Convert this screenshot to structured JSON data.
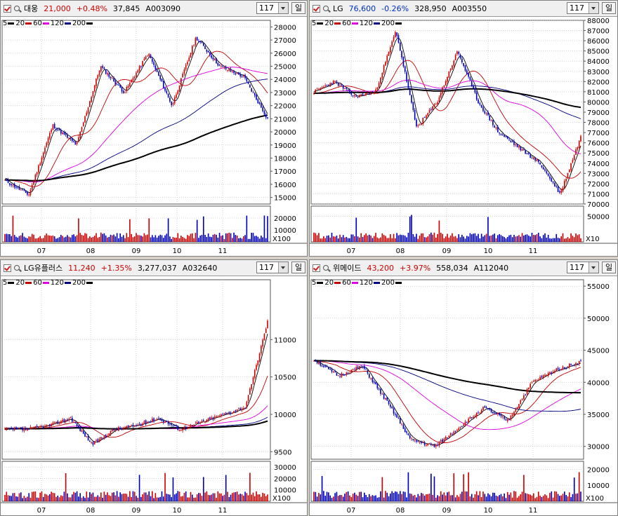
{
  "legend": [
    {
      "label": "5",
      "color": "#000000"
    },
    {
      "label": "20",
      "color": "#c00000"
    },
    {
      "label": "60",
      "color": "#e000e0"
    },
    {
      "label": "120",
      "color": "#000080"
    },
    {
      "label": "200",
      "color": "#000000"
    }
  ],
  "months": [
    "07",
    "08",
    "09",
    "10",
    "11"
  ],
  "period_label": "일",
  "panels": [
    {
      "name": "대웅",
      "price": "21,000",
      "change": "+0.48%",
      "volume": "37,845",
      "code": "A003090",
      "direction": "up",
      "period": "117",
      "vol_unit": "X100",
      "price_ticks": [
        "28000",
        "27000",
        "26000",
        "25000",
        "24000",
        "23000",
        "22000",
        "21000",
        "20000",
        "19000",
        "18000",
        "17000",
        "16000",
        "15000"
      ],
      "volume_ticks": [
        "20000",
        "10000"
      ]
    },
    {
      "name": "LG",
      "price": "76,600",
      "change": "-0.26%",
      "volume": "328,950",
      "code": "A003550",
      "direction": "down",
      "period": "117",
      "vol_unit": "X10",
      "price_ticks": [
        "88000",
        "87000",
        "86000",
        "85000",
        "84000",
        "83000",
        "82000",
        "81000",
        "80000",
        "79000",
        "78000",
        "77000",
        "76000",
        "75000",
        "74000",
        "73000",
        "72000",
        "71000",
        "70000"
      ],
      "volume_ticks": [
        "50000"
      ]
    },
    {
      "name": "LG유플러스",
      "price": "11,240",
      "change": "+1.35%",
      "volume": "3,277,037",
      "code": "A032640",
      "direction": "up",
      "period": "117",
      "vol_unit": "X100",
      "price_ticks": [
        "11000",
        "10500",
        "10000",
        "9500"
      ],
      "volume_ticks": [
        "30000",
        "20000",
        "10000"
      ]
    },
    {
      "name": "위메이드",
      "price": "43,200",
      "change": "+3.97%",
      "volume": "558,034",
      "code": "A112040",
      "direction": "up",
      "period": "117",
      "vol_unit": "X100",
      "price_ticks": [
        "55000",
        "50000",
        "45000",
        "40000",
        "35000",
        "30000"
      ],
      "volume_ticks": [
        "20000",
        "10000"
      ]
    }
  ],
  "chart_data": [
    {
      "type": "candlestick",
      "title": "대웅",
      "x_ticks": [
        "07",
        "08",
        "09",
        "10",
        "11"
      ],
      "ylim": [
        14500,
        28500
      ],
      "series": [
        {
          "name": "close",
          "values": [
            16300,
            15200,
            20500,
            19000,
            25000,
            23000,
            26000,
            22000,
            27200,
            25000,
            24200,
            21000
          ]
        }
      ]
    },
    {
      "type": "candlestick",
      "title": "LG",
      "x_ticks": [
        "07",
        "08",
        "09",
        "10",
        "11"
      ],
      "ylim": [
        70000,
        88000
      ],
      "series": [
        {
          "name": "close",
          "values": [
            81000,
            82000,
            80500,
            81000,
            87000,
            77500,
            80000,
            85000,
            80000,
            77000,
            75500,
            74000,
            71000,
            76600
          ]
        }
      ]
    },
    {
      "type": "candlestick",
      "title": "LG유플러스",
      "x_ticks": [
        "07",
        "08",
        "09",
        "10",
        "11"
      ],
      "ylim": [
        9400,
        11800
      ],
      "series": [
        {
          "name": "close",
          "values": [
            9800,
            9800,
            9850,
            9950,
            9600,
            9800,
            9850,
            9950,
            9800,
            9900,
            10000,
            10100,
            11240
          ]
        }
      ]
    },
    {
      "type": "candlestick",
      "title": "위메이드",
      "x_ticks": [
        "07",
        "08",
        "09",
        "10",
        "11"
      ],
      "ylim": [
        28000,
        56000
      ],
      "series": [
        {
          "name": "close",
          "values": [
            43500,
            41000,
            42500,
            37000,
            31000,
            30000,
            33000,
            36000,
            34000,
            40000,
            42000,
            43200
          ]
        }
      ]
    }
  ]
}
